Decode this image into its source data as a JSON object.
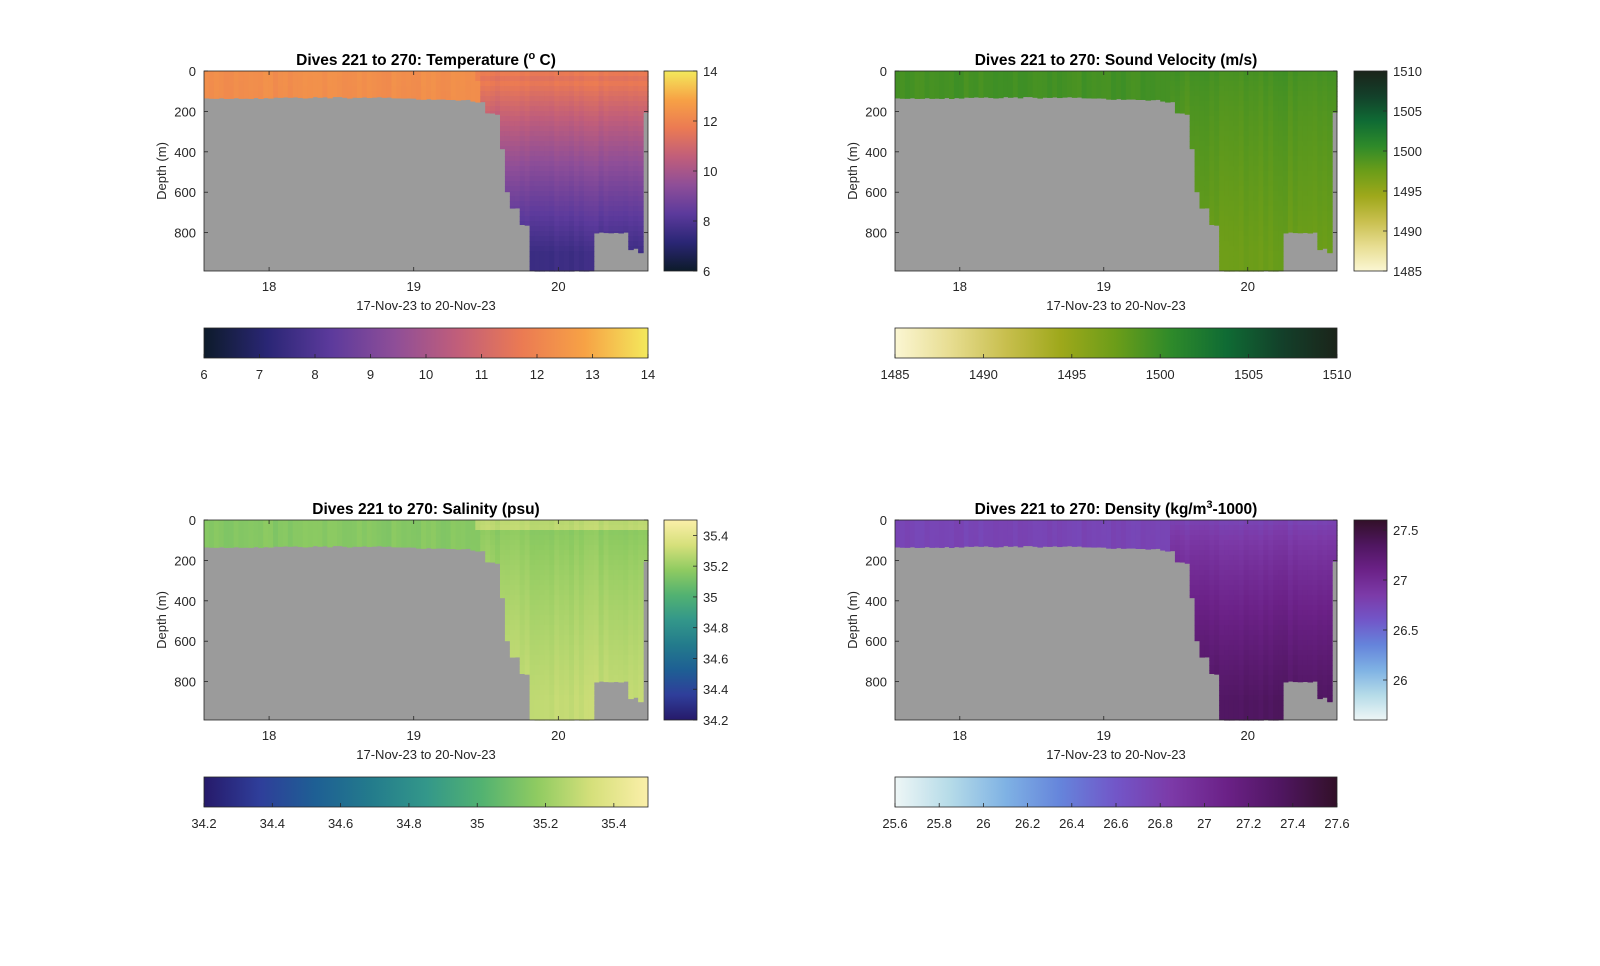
{
  "chart_data": [
    {
      "type": "heatmap",
      "title": "Dives 221 to 270: Temperature (° C)",
      "title_parts": [
        "Dives 221 to 270: Temperature (",
        "o",
        " C)"
      ],
      "xlabel": "17-Nov-23 to 20-Nov-23",
      "ylabel": "Depth (m)",
      "xlim": [
        17.55,
        20.62
      ],
      "ylim": [
        0,
        990
      ],
      "y_reversed": true,
      "x_ticks": [
        "18",
        "19",
        "20"
      ],
      "y_ticks": [
        "0",
        "200",
        "400",
        "600",
        "800"
      ],
      "colormap": [
        "#0d1b2a",
        "#2a2675",
        "#5c3a9c",
        "#8e4e98",
        "#c15e7a",
        "#eb7a53",
        "#f7a245",
        "#f3e95c"
      ],
      "clim": [
        6,
        14
      ],
      "vertical_colorbar_ticks": [
        "6",
        "8",
        "10",
        "12",
        "14"
      ],
      "horizontal_colorbar_ticks": [
        "6",
        "7",
        "8",
        "9",
        "10",
        "11",
        "12",
        "13",
        "14"
      ],
      "surface_value": 12.3,
      "deep_value": 7.6,
      "values_along_dives": {
        "x": [
          17.55,
          18.0,
          19.0,
          19.4,
          19.6,
          19.8,
          20.0,
          20.3,
          20.6
        ],
        "surface": [
          12.2,
          12.3,
          12.3,
          12.0,
          11.8,
          11.6,
          11.7,
          11.6,
          11.4
        ],
        "at_200m": [
          null,
          null,
          null,
          10.8,
          10.5,
          10.4,
          10.4,
          10.3,
          10.2
        ],
        "at_900m": [
          null,
          null,
          null,
          null,
          null,
          7.7,
          7.5,
          null,
          7.8
        ]
      },
      "bottom_depth": {
        "x": [
          17.55,
          18.0,
          18.5,
          19.0,
          19.4,
          19.5,
          19.58,
          19.62,
          19.68,
          19.72,
          19.8,
          20.05,
          20.25,
          20.45,
          20.5,
          20.55,
          20.6
        ],
        "depth": [
          135,
          130,
          130,
          140,
          150,
          210,
          380,
          600,
          680,
          760,
          990,
          990,
          800,
          800,
          880,
          900,
          200
        ]
      }
    },
    {
      "type": "heatmap",
      "title": "Dives 221 to 270: Sound Velocity (m/s)",
      "xlabel": "17-Nov-23 to 20-Nov-23",
      "ylabel": "Depth (m)",
      "xlim": [
        17.55,
        20.62
      ],
      "ylim": [
        0,
        990
      ],
      "y_reversed": true,
      "x_ticks": [
        "18",
        "19",
        "20"
      ],
      "y_ticks": [
        "0",
        "200",
        "400",
        "600",
        "800"
      ],
      "colormap": [
        "#fbf6d3",
        "#e7dd91",
        "#c8bf4e",
        "#9ea81b",
        "#6b9d19",
        "#2e8a2a",
        "#0f6b34",
        "#13402a",
        "#1b241a"
      ],
      "clim": [
        1485,
        1510
      ],
      "vertical_colorbar_ticks": [
        "1485",
        "1490",
        "1495",
        "1500",
        "1505",
        "1510"
      ],
      "horizontal_colorbar_ticks": [
        "1485",
        "1490",
        "1495",
        "1500",
        "1505",
        "1510"
      ],
      "surface_value": 1499.5,
      "deep_value": 1497.5
    },
    {
      "type": "heatmap",
      "title": "Dives 221 to 270: Salinity (psu)",
      "xlabel": "17-Nov-23 to 20-Nov-23",
      "ylabel": "Depth (m)",
      "xlim": [
        17.55,
        20.62
      ],
      "ylim": [
        0,
        990
      ],
      "y_reversed": true,
      "x_ticks": [
        "18",
        "19",
        "20"
      ],
      "y_ticks": [
        "0",
        "200",
        "400",
        "600",
        "800"
      ],
      "colormap": [
        "#261a6a",
        "#2f3e9a",
        "#1e5f94",
        "#237b8c",
        "#33978a",
        "#52b271",
        "#8fcb61",
        "#d6e07b",
        "#fbefa9"
      ],
      "clim": [
        34.2,
        35.5
      ],
      "vertical_colorbar_ticks": [
        "34.2",
        "34.4",
        "34.6",
        "34.8",
        "35",
        "35.2",
        "35.4"
      ],
      "horizontal_colorbar_ticks": [
        "34.2",
        "34.4",
        "34.6",
        "34.8",
        "35",
        "35.2",
        "35.4"
      ],
      "surface_value": 35.15,
      "deep_value": 35.3
    },
    {
      "type": "heatmap",
      "title": "Dives 221 to 270: Density (kg/m³-1000)",
      "title_parts": [
        "Dives 221 to 270: Density (kg/m",
        "3",
        "-1000)"
      ],
      "xlabel": "17-Nov-23 to 20-Nov-23",
      "ylabel": "Depth (m)",
      "xlim": [
        17.55,
        20.62
      ],
      "ylim": [
        0,
        990
      ],
      "y_reversed": true,
      "x_ticks": [
        "18",
        "19",
        "20"
      ],
      "y_ticks": [
        "0",
        "200",
        "400",
        "600",
        "800"
      ],
      "colormap": [
        "#eef6f6",
        "#b5dbe8",
        "#7fb2e4",
        "#6584db",
        "#7256c8",
        "#7c3aa8",
        "#6b2187",
        "#4f1660",
        "#321028"
      ],
      "clim": [
        25.6,
        27.6
      ],
      "vertical_colorbar_ticks": [
        "26",
        "26.5",
        "27",
        "27.5"
      ],
      "horizontal_colorbar_ticks": [
        "25.6",
        "25.8",
        "26",
        "26.2",
        "26.4",
        "26.6",
        "26.8",
        "27",
        "27.2",
        "27.4",
        "27.6"
      ],
      "surface_value": 26.75,
      "deep_value": 27.35
    }
  ],
  "colors": {
    "land_mask": "#9b9b9b",
    "axes": "#262626",
    "text": "#262626"
  }
}
